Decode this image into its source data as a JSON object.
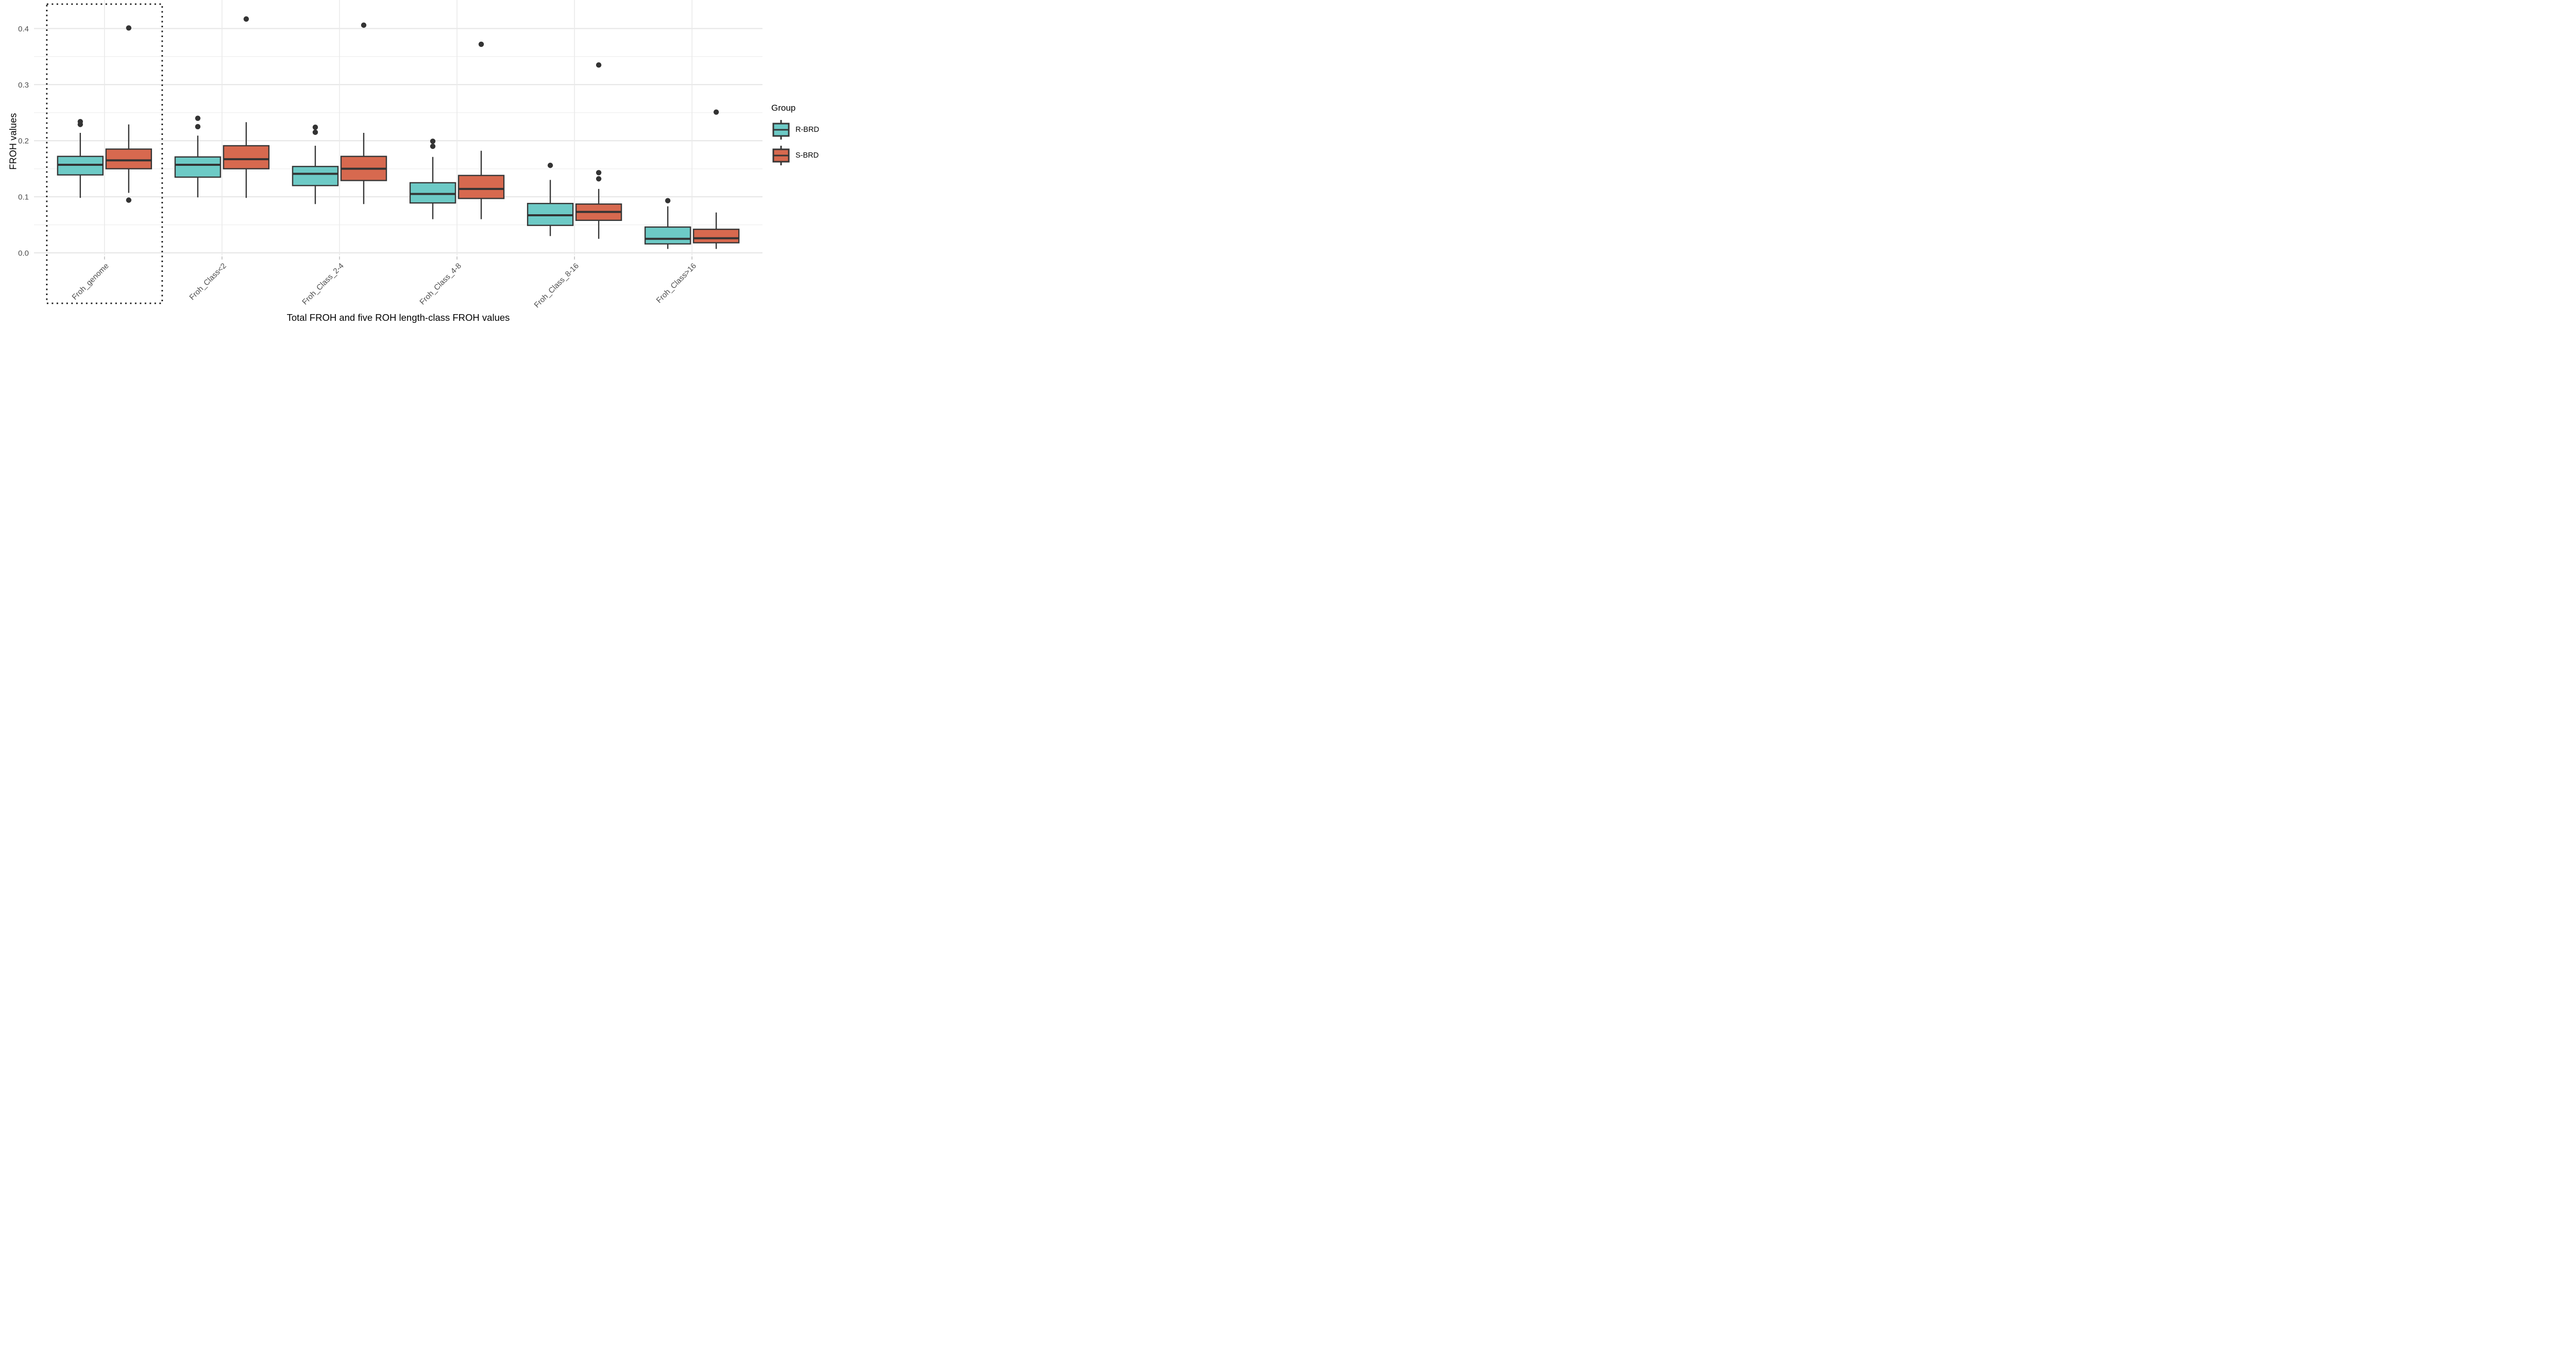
{
  "figure": {
    "background": "#FFFFFF"
  },
  "axes": {
    "y_title": "FROH values",
    "x_title": "Total FROH and five ROH length-class FROH values",
    "y_tick_labels": [
      "0.0",
      "0.1",
      "0.2",
      "0.3",
      "0.4"
    ]
  },
  "legend": {
    "title": "Group",
    "items": [
      {
        "label": "R-BRD",
        "color": "#6DCAC6"
      },
      {
        "label": "S-BRD",
        "color": "#D7694F"
      }
    ]
  },
  "chart_data": {
    "type": "boxplot",
    "orientation": "vertical",
    "grouped": true,
    "title": "",
    "xlabel": "Total FROH and five ROH length-class FROH values",
    "ylabel": "FROH values",
    "ylim": [
      -0.012,
      0.451
    ],
    "yticks": [
      0.0,
      0.1,
      0.2,
      0.3,
      0.4
    ],
    "minor_yticks": [
      0.05,
      0.15,
      0.25,
      0.35
    ],
    "grid": true,
    "legend_position": "right",
    "legend_title": "Group",
    "categories": [
      "Froh_genome",
      "Froh_Class<2",
      "Froh_Class_2-4",
      "Froh_Class_4-8",
      "Froh_Class_8-16",
      "Froh_Class>16"
    ],
    "highlight": {
      "category_index": 0,
      "style": "dotted-rectangle",
      "note": "dotted box drawn around Froh_genome group including its axis label"
    },
    "series": [
      {
        "name": "R-BRD",
        "fill": "#6DCAC6",
        "boxes": [
          {
            "whisker_low": 0.098,
            "q1": 0.139,
            "median": 0.157,
            "q3": 0.172,
            "whisker_high": 0.214,
            "outliers": [
              0.229,
              0.234
            ]
          },
          {
            "whisker_low": 0.099,
            "q1": 0.135,
            "median": 0.157,
            "q3": 0.171,
            "whisker_high": 0.209,
            "outliers": [
              0.225,
              0.24
            ]
          },
          {
            "whisker_low": 0.087,
            "q1": 0.12,
            "median": 0.141,
            "q3": 0.154,
            "whisker_high": 0.191,
            "outliers": [
              0.215,
              0.224
            ]
          },
          {
            "whisker_low": 0.06,
            "q1": 0.089,
            "median": 0.105,
            "q3": 0.125,
            "whisker_high": 0.171,
            "outliers": [
              0.19,
              0.199
            ]
          },
          {
            "whisker_low": 0.03,
            "q1": 0.049,
            "median": 0.067,
            "q3": 0.088,
            "whisker_high": 0.13,
            "outliers": [
              0.156
            ]
          },
          {
            "whisker_low": 0.007,
            "q1": 0.016,
            "median": 0.025,
            "q3": 0.046,
            "whisker_high": 0.083,
            "outliers": [
              0.093
            ]
          }
        ]
      },
      {
        "name": "S-BRD",
        "fill": "#D7694F",
        "boxes": [
          {
            "whisker_low": 0.107,
            "q1": 0.15,
            "median": 0.165,
            "q3": 0.185,
            "whisker_high": 0.229,
            "outliers": [
              0.094,
              0.401
            ]
          },
          {
            "whisker_low": 0.098,
            "q1": 0.15,
            "median": 0.167,
            "q3": 0.191,
            "whisker_high": 0.233,
            "outliers": [
              0.417
            ]
          },
          {
            "whisker_low": 0.087,
            "q1": 0.129,
            "median": 0.15,
            "q3": 0.172,
            "whisker_high": 0.214,
            "outliers": [
              0.406
            ]
          },
          {
            "whisker_low": 0.06,
            "q1": 0.097,
            "median": 0.114,
            "q3": 0.138,
            "whisker_high": 0.182,
            "outliers": [
              0.372
            ]
          },
          {
            "whisker_low": 0.025,
            "q1": 0.058,
            "median": 0.073,
            "q3": 0.087,
            "whisker_high": 0.114,
            "outliers": [
              0.132,
              0.143,
              0.335
            ]
          },
          {
            "whisker_low": 0.007,
            "q1": 0.018,
            "median": 0.026,
            "q3": 0.042,
            "whisker_high": 0.072,
            "outliers": [
              0.251
            ]
          }
        ]
      }
    ],
    "style_colors": {
      "box_stroke": "#363636",
      "median": "#333333",
      "whisker": "#363636",
      "outlier": "#333333",
      "grid_major": "#E5E5E5",
      "grid_minor": "#F2F2F2",
      "grid_vertical": "#EAEAEA",
      "tick_label": "#4D4D4D",
      "highlight_rect": "#1A1A1A"
    }
  }
}
